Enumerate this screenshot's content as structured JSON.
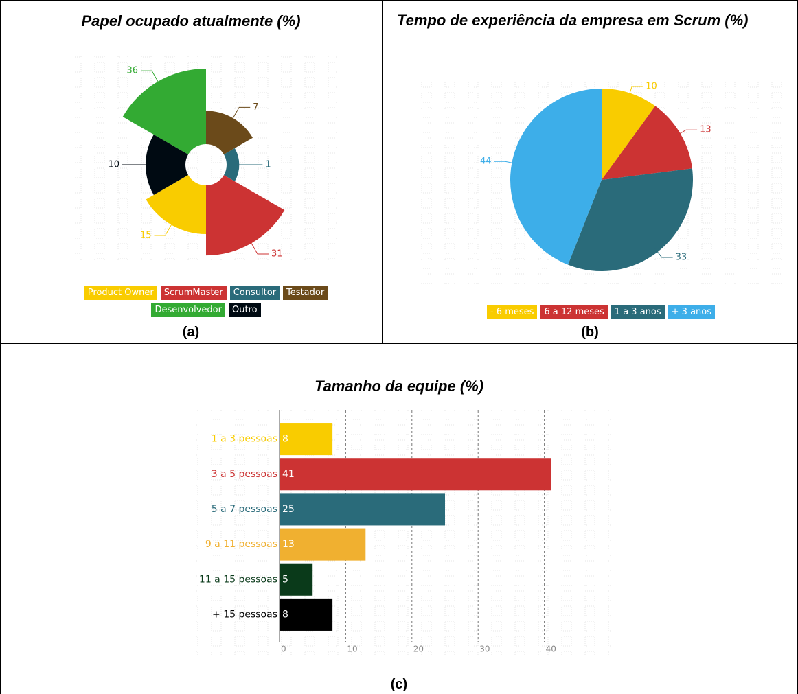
{
  "chart_data": [
    {
      "type": "polar",
      "title": "Papel ocupado atualmente (%)",
      "caption": "(a)",
      "categories": [
        "Product Owner",
        "ScrumMaster",
        "Consultor",
        "Testador",
        "Desenvolvedor",
        "Outro"
      ],
      "values": [
        15,
        31,
        1,
        7,
        36,
        10
      ],
      "colors": [
        "#f9cc00",
        "#cc3333",
        "#2a6b7a",
        "#6b4a1a",
        "#33aa33",
        "#000a12"
      ]
    },
    {
      "type": "pie",
      "title": "Tempo de experiência da empresa em Scrum (%)",
      "caption": "(b)",
      "categories": [
        "- 6 meses",
        "6 a 12 meses",
        "1 a 3 anos",
        "+ 3 anos"
      ],
      "values": [
        10,
        13,
        33,
        44
      ],
      "colors": [
        "#f9cc00",
        "#cc3333",
        "#2a6b7a",
        "#3daee9"
      ]
    },
    {
      "type": "hbar",
      "title": "Tamanho da equipe (%)",
      "caption": "(c)",
      "categories": [
        "1 a 3 pessoas",
        "3 a 5 pessoas",
        "5 a 7 pessoas",
        "9 a 11 pessoas",
        "11 a 15 pessoas",
        "+ 15 pessoas"
      ],
      "values": [
        8,
        41,
        25,
        13,
        5,
        8
      ],
      "colors": [
        "#f9cc00",
        "#cc3333",
        "#2a6b7a",
        "#f0b030",
        "#0a3a1a",
        "#000000"
      ],
      "xlim": [
        0,
        50
      ],
      "xticks": [
        0,
        10,
        20,
        30,
        40
      ],
      "grid": true
    }
  ]
}
